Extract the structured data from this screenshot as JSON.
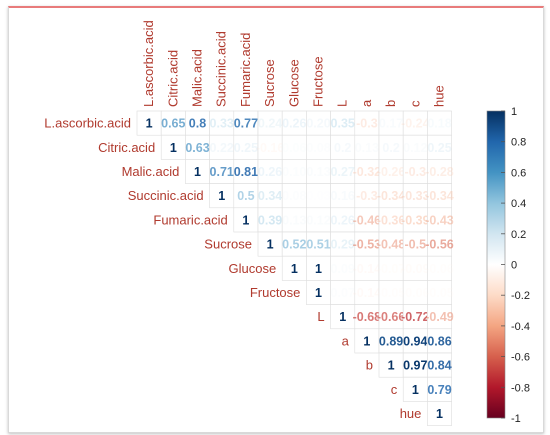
{
  "chart_data": {
    "type": "heatmap",
    "variables": [
      "L.ascorbic.acid",
      "Citric.acid",
      "Malic.acid",
      "Succinic.acid",
      "Fumaric.acid",
      "Sucrose",
      "Glucose",
      "Fructose",
      "L",
      "a",
      "b",
      "c",
      "hue"
    ],
    "values": [
      [
        1,
        0.65,
        0.8,
        0.33,
        0.77,
        0.24,
        0.26,
        0.2,
        0.35,
        -0.3,
        0.17,
        -0.24,
        0.18
      ],
      [
        null,
        1,
        0.63,
        0.22,
        0.25,
        -0.16,
        0.06,
        0.08,
        0.2,
        0.13,
        0.2,
        0.12,
        0.25
      ],
      [
        null,
        null,
        1,
        0.71,
        0.81,
        0.26,
        0.1,
        0.13,
        0.27,
        -0.32,
        -0.26,
        -0.3,
        -0.28
      ],
      [
        null,
        null,
        null,
        1,
        0.5,
        0.34,
        0.08,
        0.03,
        0.16,
        -0.3,
        -0.34,
        -0.33,
        -0.34
      ],
      [
        null,
        null,
        null,
        null,
        1,
        0.39,
        0.13,
        0.12,
        0.26,
        -0.46,
        -0.36,
        -0.39,
        -0.43
      ],
      [
        null,
        null,
        null,
        null,
        null,
        1,
        0.52,
        0.51,
        0.29,
        -0.53,
        -0.48,
        -0.5,
        -0.56
      ],
      [
        null,
        null,
        null,
        null,
        null,
        null,
        1,
        1,
        0.09,
        -0.14,
        -0.07,
        -0.09,
        -0.06
      ],
      [
        null,
        null,
        null,
        null,
        null,
        null,
        null,
        1,
        0.07,
        -0.14,
        -0.05,
        -0.06,
        -0.05
      ],
      [
        null,
        null,
        null,
        null,
        null,
        null,
        null,
        null,
        1,
        -0.68,
        -0.66,
        -0.72,
        -0.49
      ],
      [
        null,
        null,
        null,
        null,
        null,
        null,
        null,
        null,
        null,
        1,
        0.89,
        0.94,
        0.86
      ],
      [
        null,
        null,
        null,
        null,
        null,
        null,
        null,
        null,
        null,
        null,
        1,
        0.97,
        0.84
      ],
      [
        null,
        null,
        null,
        null,
        null,
        null,
        null,
        null,
        null,
        null,
        null,
        1,
        0.79
      ],
      [
        null,
        null,
        null,
        null,
        null,
        null,
        null,
        null,
        null,
        null,
        null,
        null,
        1
      ]
    ],
    "labels": [
      [
        "1",
        "0.65",
        "0.8",
        "0.33",
        "0.77",
        "0.24",
        "0.26",
        "0.20",
        "0.35",
        "-0.3",
        "0.17",
        "-0.24",
        "0.18"
      ],
      [
        "",
        "1",
        "0.63",
        "0.22",
        "0.25",
        "-0.16",
        "0.06",
        "0.08",
        "0.2",
        "0.13",
        "0.2",
        "0.12",
        "0.25"
      ],
      [
        "",
        "",
        "1",
        "0.71",
        "0.81",
        "0.26",
        "0.10",
        "0.13",
        "0.27",
        "-0.32",
        "-0.26",
        "-0.3",
        "-0.28"
      ],
      [
        "",
        "",
        "",
        "1",
        "0.5",
        "0.34",
        "0.08",
        "0.03",
        "0.16",
        "-0.3",
        "-0.34",
        "-0.33",
        "-0.34"
      ],
      [
        "",
        "",
        "",
        "",
        "1",
        "0.39",
        "0.13",
        "0.12",
        "0.26",
        "-0.46",
        "-0.36",
        "-0.39",
        "-0.43"
      ],
      [
        "",
        "",
        "",
        "",
        "",
        "1",
        "0.52",
        "0.51",
        "0.29",
        "-0.53",
        "-0.48",
        "-0.5",
        "-0.56"
      ],
      [
        "",
        "",
        "",
        "",
        "",
        "",
        "1",
        "1",
        "0.09",
        "-0.14",
        "-0.07",
        "-0.09",
        "-0.06"
      ],
      [
        "",
        "",
        "",
        "",
        "",
        "",
        "",
        "1",
        "0.07",
        "-0.14",
        "-0.05",
        "-0.06",
        "-0.05"
      ],
      [
        "",
        "",
        "",
        "",
        "",
        "",
        "",
        "",
        "1",
        "-0.68",
        "-0.66",
        "-0.72",
        "-0.49"
      ],
      [
        "",
        "",
        "",
        "",
        "",
        "",
        "",
        "",
        "",
        "1",
        "0.89",
        "0.94",
        "0.86"
      ],
      [
        "",
        "",
        "",
        "",
        "",
        "",
        "",
        "",
        "",
        "",
        "1",
        "0.97",
        "0.84"
      ],
      [
        "",
        "",
        "",
        "",
        "",
        "",
        "",
        "",
        "",
        "",
        "",
        "1",
        "0.79"
      ],
      [
        "",
        "",
        "",
        "",
        "",
        "",
        "",
        "",
        "",
        "",
        "",
        "",
        "1"
      ]
    ],
    "colorbar": {
      "range": [
        -1,
        1
      ],
      "ticks": [
        "1",
        "0.8",
        "0.6",
        "0.4",
        "0.2",
        "0",
        "-0.2",
        "-0.4",
        "-0.6",
        "-0.8",
        "-1"
      ],
      "colors": [
        "#67001f",
        "#b2182b",
        "#d6604d",
        "#f4a582",
        "#fddbc7",
        "#ffffff",
        "#d1e5f0",
        "#92c5de",
        "#4393c3",
        "#2166ac",
        "#053061"
      ]
    },
    "label_color": "#b03a2e",
    "layout": "upper-triangle"
  }
}
